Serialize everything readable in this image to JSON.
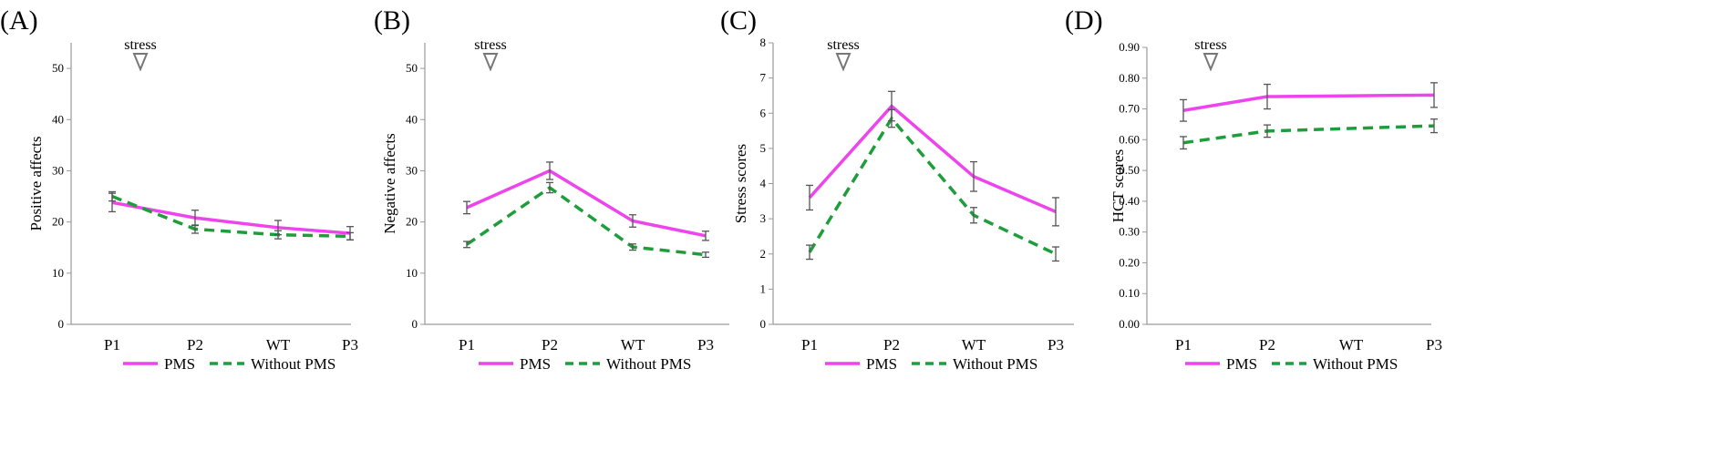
{
  "figure": {
    "colors": {
      "pms": "#ee44ee",
      "without_pms": "#1e9e3a",
      "axis": "#999999",
      "marker": "#777777",
      "errorbar": "#555555"
    },
    "legend": {
      "pms": "PMS",
      "without_pms": "Without PMS"
    },
    "stress_label": "stress"
  },
  "chart_data": [
    {
      "type": "line",
      "panel_label": "(A)",
      "ylabel": "Positive affects",
      "categories": [
        "P1",
        "P2",
        "WT",
        "P3"
      ],
      "ylim": [
        0,
        55
      ],
      "yticks": [
        0,
        10,
        20,
        30,
        40,
        50
      ],
      "ytick_labels": [
        "0",
        "10",
        "20",
        "30",
        "40",
        "50"
      ],
      "stress_marker_at": 1.4,
      "series": [
        {
          "name": "PMS",
          "values": [
            23.8,
            20.8,
            18.9,
            17.8
          ],
          "errors": [
            1.8,
            1.5,
            1.4,
            1.3
          ]
        },
        {
          "name": "Without PMS",
          "values": [
            25.0,
            18.6,
            17.5,
            17.2
          ],
          "errors": [
            0.9,
            0.8,
            0.8,
            0.7
          ]
        }
      ]
    },
    {
      "type": "line",
      "panel_label": "(B)",
      "ylabel": "Negative affects",
      "categories": [
        "P1",
        "P2",
        "WT",
        "P3"
      ],
      "ylim": [
        0,
        55
      ],
      "yticks": [
        0,
        10,
        20,
        30,
        40,
        50
      ],
      "ytick_labels": [
        "0",
        "10",
        "20",
        "30",
        "40",
        "50"
      ],
      "stress_marker_at": 1.4,
      "series": [
        {
          "name": "PMS",
          "values": [
            22.8,
            30.0,
            20.2,
            17.3
          ],
          "errors": [
            1.2,
            1.7,
            1.2,
            0.9
          ]
        },
        {
          "name": "Without PMS",
          "values": [
            15.6,
            26.7,
            15.1,
            13.6
          ],
          "errors": [
            0.6,
            1.0,
            0.6,
            0.5
          ]
        }
      ]
    },
    {
      "type": "line",
      "panel_label": "(C)",
      "ylabel": "Stress scores",
      "categories": [
        "P1",
        "P2",
        "WT",
        "P3"
      ],
      "ylim": [
        0,
        8
      ],
      "yticks": [
        0,
        1,
        2,
        3,
        4,
        5,
        6,
        7,
        8
      ],
      "ytick_labels": [
        "0",
        "1",
        "2",
        "3",
        "4",
        "5",
        "6",
        "7",
        "8"
      ],
      "stress_marker_at": 1.4,
      "series": [
        {
          "name": "PMS",
          "values": [
            3.6,
            6.2,
            4.2,
            3.2
          ],
          "errors": [
            0.35,
            0.42,
            0.42,
            0.4
          ]
        },
        {
          "name": "Without PMS",
          "values": [
            2.05,
            5.85,
            3.1,
            2.0
          ],
          "errors": [
            0.2,
            0.25,
            0.22,
            0.2
          ]
        }
      ]
    },
    {
      "type": "line",
      "panel_label": "(D)",
      "ylabel": "HCT scores",
      "categories": [
        "P1",
        "P2",
        "WT",
        "P3"
      ],
      "ylim": [
        0,
        0.9
      ],
      "yticks": [
        0,
        0.1,
        0.2,
        0.3,
        0.4,
        0.5,
        0.6,
        0.7,
        0.8,
        0.9
      ],
      "ytick_labels": [
        "0.00",
        "0.10",
        "0.20",
        "0.30",
        "0.40",
        "0.50",
        "0.60",
        "0.70",
        "0.80",
        "0.90"
      ],
      "stress_marker_at": 1.4,
      "series": [
        {
          "name": "PMS",
          "values": [
            0.695,
            0.74,
            null,
            0.745
          ],
          "errors": [
            0.035,
            0.04,
            null,
            0.04
          ]
        },
        {
          "name": "Without PMS",
          "values": [
            0.59,
            0.628,
            null,
            0.645
          ],
          "errors": [
            0.02,
            0.02,
            null,
            0.022
          ]
        }
      ]
    }
  ]
}
